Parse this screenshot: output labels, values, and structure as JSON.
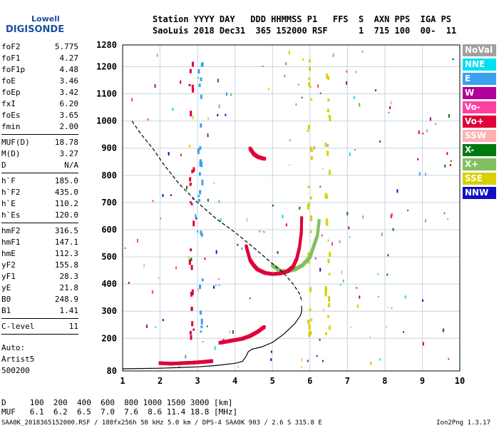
{
  "logo": {
    "line1": "Lowell",
    "line2": "DIGISONDE"
  },
  "header": {
    "line1": "Station YYYY DAY   DDD HHMMSS P1   FFS  S  AXN PPS  IGA PS",
    "line2": "SaoLuis 2018 Dec31  365 152000 RSF      1  715 100  00-  11"
  },
  "params_group1": [
    {
      "name": "foF2",
      "value": "5.775"
    },
    {
      "name": "foF1",
      "value": "4.27"
    },
    {
      "name": "foF1p",
      "value": "4.48"
    },
    {
      "name": "foE",
      "value": "3.46"
    },
    {
      "name": "foEp",
      "value": "3.42"
    },
    {
      "name": "fxI",
      "value": "6.20"
    },
    {
      "name": "foEs",
      "value": "3.65"
    },
    {
      "name": "fmin",
      "value": "2.00"
    }
  ],
  "params_group2": [
    {
      "name": "MUF(D)",
      "value": "18.78"
    },
    {
      "name": "M(D)",
      "value": "3.27"
    },
    {
      "name": "D",
      "value": "N/A"
    }
  ],
  "params_group3": [
    {
      "name": "h`F",
      "value": "185.0"
    },
    {
      "name": "h`F2",
      "value": "435.0"
    },
    {
      "name": "h`E",
      "value": "110.2"
    },
    {
      "name": "h`Es",
      "value": "120.0"
    }
  ],
  "params_group4": [
    {
      "name": "hmF2",
      "value": "316.5"
    },
    {
      "name": "hmF1",
      "value": "147.1"
    },
    {
      "name": "hmE",
      "value": "112.3"
    },
    {
      "name": "yF2",
      "value": "155.8"
    },
    {
      "name": "yF1",
      "value": "28.3"
    },
    {
      "name": "yE",
      "value": "21.8"
    },
    {
      "name": "B0",
      "value": "248.9"
    },
    {
      "name": "B1",
      "value": "1.41"
    }
  ],
  "params_group5": [
    {
      "name": "C-level",
      "value": "11"
    }
  ],
  "auto": {
    "line1": "Auto:",
    "line2": "Artist5",
    "line3": "500200"
  },
  "legend": [
    {
      "label": "NoVal",
      "color": "#a0a0a0"
    },
    {
      "label": "NNE",
      "color": "#00e0f0"
    },
    {
      "label": "E",
      "color": "#3aa0f0"
    },
    {
      "label": "W",
      "color": "#b0009a"
    },
    {
      "label": "Vo-",
      "color": "#ff40a0"
    },
    {
      "label": "Vo+",
      "color": "#e0003a"
    },
    {
      "label": "SSW",
      "color": "#ffb0b0"
    },
    {
      "label": "X-",
      "color": "#007a10"
    },
    {
      "label": "X+",
      "color": "#80c060"
    },
    {
      "label": "SSE",
      "color": "#d8d000"
    },
    {
      "label": "NNW",
      "color": "#1010c0"
    }
  ],
  "footer": {
    "d_row": "D     100  200  400  600  800 1000 1500 3000 [km]",
    "muf_row": "MUF   6.1  6.2  6.5  7.0  7.6  8.6 11.4 18.8 [MHz]",
    "status_line": "SAA0K_2018365152000.RSF / 180fx256h 50 kHz 5.0 km / DPS-4 SAA0K 903 / 2.6 S 315.8 E",
    "version": "Ion2Png 1.3.17"
  },
  "chart_data": {
    "type": "scatter",
    "title": "",
    "xlabel": "",
    "ylabel": "",
    "xlim": [
      1,
      10
    ],
    "ylim": [
      80,
      1280
    ],
    "x_ticks": [
      "1",
      "2",
      "3",
      "4",
      "5",
      "6",
      "7",
      "8",
      "9",
      "10"
    ],
    "y_ticks": [
      "80",
      "200",
      "300",
      "400",
      "500",
      "600",
      "700",
      "800",
      "900",
      "1000",
      "1100",
      "1200",
      "1280"
    ],
    "grid": true,
    "legend_position": "right",
    "profile_dashed": {
      "name": "plasma-frequency-profile",
      "x": [
        1.25,
        1.5,
        1.8,
        2.1,
        2.5,
        3.0,
        3.5,
        4.0,
        4.4,
        4.7,
        5.0,
        5.3,
        5.55,
        5.72,
        5.78
      ],
      "y": [
        1000,
        950,
        900,
        840,
        770,
        700,
        640,
        590,
        545,
        510,
        475,
        440,
        400,
        365,
        340
      ]
    },
    "profile_solid": {
      "name": "true-height-profile",
      "x": [
        1.0,
        2.0,
        3.0,
        3.5,
        4.0,
        4.2,
        4.3,
        4.35,
        4.45,
        4.7,
        5.0,
        5.3,
        5.6,
        5.75,
        5.78,
        5.78
      ],
      "y": [
        88,
        90,
        95,
        100,
        108,
        115,
        135,
        150,
        160,
        168,
        185,
        215,
        255,
        285,
        300,
        320
      ]
    },
    "trace_F2_ordinary": {
      "name": "Vo+",
      "x": [
        4.3,
        4.4,
        4.5,
        4.6,
        4.8,
        5.0,
        5.2,
        5.4,
        5.55,
        5.65,
        5.72,
        5.77,
        5.78
      ],
      "y": [
        540,
        490,
        470,
        455,
        442,
        438,
        440,
        448,
        465,
        495,
        535,
        590,
        650
      ]
    },
    "trace_F2_extraordinary": {
      "name": "X+",
      "x": [
        5.0,
        5.2,
        5.4,
        5.6,
        5.8,
        6.0,
        6.1,
        6.2,
        6.25
      ],
      "y": [
        470,
        450,
        448,
        455,
        470,
        500,
        540,
        580,
        640
      ]
    },
    "trace_multi_hop": {
      "name": "Vo+",
      "x": [
        4.4,
        4.5,
        4.6,
        4.7,
        4.8
      ],
      "y": [
        900,
        880,
        870,
        865,
        862
      ]
    },
    "trace_F1": {
      "name": "Vo+",
      "x": [
        3.6,
        3.8,
        4.0,
        4.2,
        4.4,
        4.6,
        4.8
      ],
      "y": [
        185,
        190,
        195,
        200,
        210,
        225,
        245
      ]
    },
    "trace_E": {
      "name": "Vo+",
      "x": [
        2.0,
        2.3,
        2.6,
        2.9,
        3.2,
        3.4
      ],
      "y": [
        110,
        108,
        110,
        112,
        115,
        118
      ]
    }
  }
}
